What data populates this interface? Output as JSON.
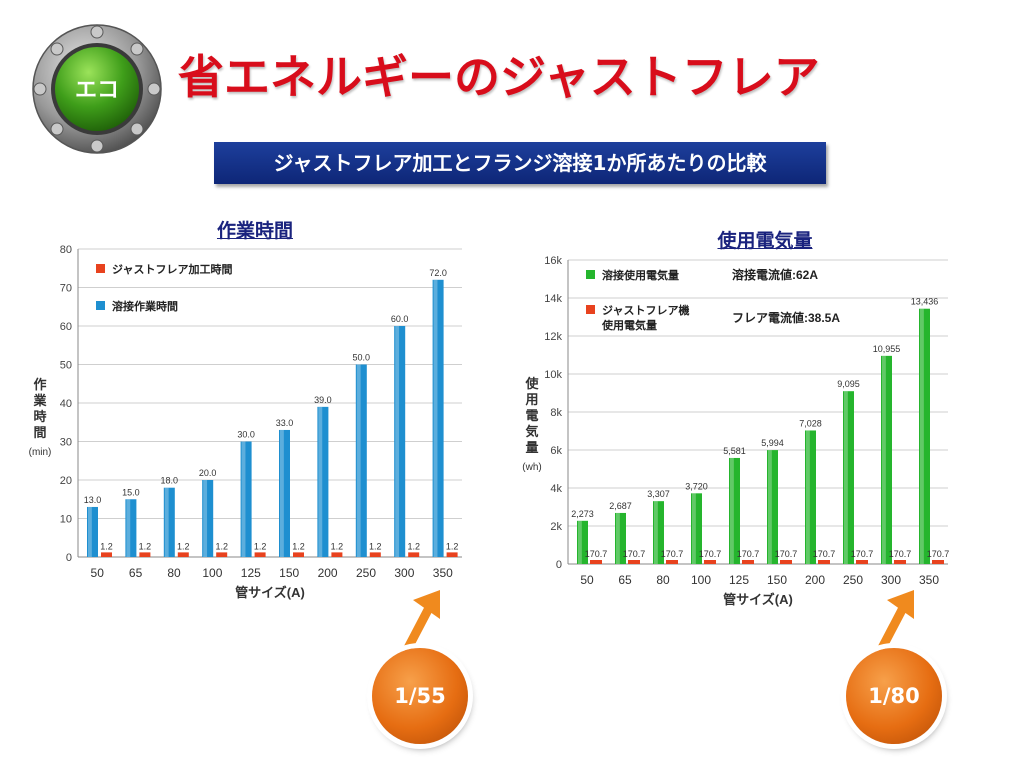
{
  "header": {
    "badge_label": "エコ",
    "title": "省エネルギーのジャストフレア",
    "subtitle": "ジャストフレア加工とフランジ溶接1か所あたりの比較"
  },
  "colors": {
    "title": "#d80d1b",
    "subtitle_bg": "#1d3f9c",
    "bar_blue": "#1e8fd0",
    "bar_red": "#e8421e",
    "bar_green": "#25b52d",
    "ratio_orange": "#e66d12"
  },
  "ratios": {
    "left": "1/55",
    "right": "1/80"
  },
  "chart_data": [
    {
      "type": "bar",
      "title": "作業時間",
      "xlabel": "管サイズ(A)",
      "ylabel": "作業時間",
      "yunit": "(min)",
      "categories": [
        "50",
        "65",
        "80",
        "100",
        "125",
        "150",
        "200",
        "250",
        "300",
        "350"
      ],
      "ylim": [
        0,
        80
      ],
      "yticks": [
        "0",
        "10",
        "20",
        "30",
        "40",
        "50",
        "60",
        "70",
        "80"
      ],
      "grid": true,
      "legend_position": "top-left",
      "series": [
        {
          "name": "溶接作業時間",
          "color": "#1e8fd0",
          "values": [
            13.0,
            15.0,
            18.0,
            20.0,
            30.0,
            33.0,
            39.0,
            50.0,
            60.0,
            72.0
          ],
          "labels": [
            "13.0",
            "15.0",
            "18.0",
            "20.0",
            "30.0",
            "33.0",
            "39.0",
            "50.0",
            "60.0",
            "72.0"
          ]
        },
        {
          "name": "ジャストフレア加工時間",
          "color": "#e8421e",
          "values": [
            1.2,
            1.2,
            1.2,
            1.2,
            1.2,
            1.2,
            1.2,
            1.2,
            1.2,
            1.2
          ],
          "labels": [
            "1.2",
            "1.2",
            "1.2",
            "1.2",
            "1.2",
            "1.2",
            "1.2",
            "1.2",
            "1.2",
            "1.2"
          ]
        }
      ],
      "legend": [
        {
          "label": "ジャストフレア加工時間",
          "color": "#e8421e"
        },
        {
          "label": "溶接作業時間",
          "color": "#1e8fd0"
        }
      ]
    },
    {
      "type": "bar",
      "title": "使用電気量",
      "xlabel": "管サイズ(A)",
      "ylabel": "使用電気量",
      "yunit": "(wh)",
      "categories": [
        "50",
        "65",
        "80",
        "100",
        "125",
        "150",
        "200",
        "250",
        "300",
        "350"
      ],
      "ylim": [
        0,
        16000
      ],
      "yticks": [
        "0",
        "2k",
        "4k",
        "6k",
        "8k",
        "10k",
        "12k",
        "14k",
        "16k"
      ],
      "grid": true,
      "legend_position": "top-left",
      "series": [
        {
          "name": "溶接使用電気量",
          "color": "#25b52d",
          "values": [
            2273,
            2687,
            3307,
            3720,
            5581,
            5994,
            7028,
            9095,
            10955,
            13436
          ],
          "labels": [
            "2,273",
            "2,687",
            "3,307",
            "3,720",
            "5,581",
            "5,994",
            "7,028",
            "9,095",
            "10,955",
            "13,436"
          ]
        },
        {
          "name": "ジャストフレア機使用電気量",
          "color": "#e8421e",
          "values": [
            170.7,
            170.7,
            170.7,
            170.7,
            170.7,
            170.7,
            170.7,
            170.7,
            170.7,
            170.7
          ],
          "labels": [
            "170.7",
            "170.7",
            "170.7",
            "170.7",
            "170.7",
            "170.7",
            "170.7",
            "170.7",
            "170.7",
            "170.7"
          ]
        }
      ],
      "legend": [
        {
          "label_lines": [
            "溶接使用電気量"
          ],
          "color": "#25b52d",
          "note": "溶接電流値:62A"
        },
        {
          "label_lines": [
            "ジャストフレア機",
            "使用電気量"
          ],
          "color": "#e8421e",
          "note": "フレア電流値:38.5A"
        }
      ]
    }
  ]
}
